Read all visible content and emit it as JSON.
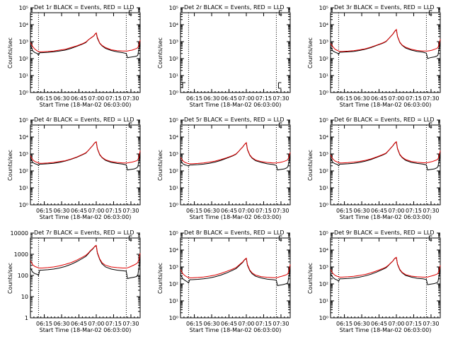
{
  "colors": {
    "events": "#000000",
    "lld": "#e00000",
    "axis": "#000000"
  },
  "shared": {
    "x_tick_labels": [
      "06:15",
      "06:30",
      "06:45",
      "07:00",
      "07:15",
      "07:30"
    ],
    "x_ticks_min": [
      12,
      27,
      42,
      57,
      72,
      87
    ],
    "x_range_min": [
      0,
      95
    ],
    "dotted_lines_min": [
      7,
      83
    ],
    "xlabel": "Start Time (18-Mar-02 06:03:00)"
  },
  "chart_data": [
    {
      "type": "line",
      "title": "Det 1r BLACK = Events, RED = LLD",
      "ylabel": "Counts/sec",
      "ylim_log": [
        0,
        5
      ],
      "y_tick_labels": [
        "10⁰",
        "10¹",
        "10²",
        "10³",
        "10⁴",
        "10⁵"
      ],
      "x_min": [
        0,
        2,
        4,
        6,
        7,
        8,
        10,
        15,
        20,
        25,
        30,
        35,
        40,
        45,
        48,
        50,
        52,
        54,
        55,
        56,
        57,
        58,
        60,
        62,
        65,
        70,
        75,
        80,
        83,
        84,
        86,
        88,
        90,
        92,
        93,
        94,
        95
      ],
      "series": [
        {
          "name": "Events",
          "values": [
            2.8,
            2.45,
            2.35,
            2.3,
            2.2,
            2.35,
            2.35,
            2.37,
            2.4,
            2.45,
            2.5,
            2.6,
            2.72,
            2.85,
            2.95,
            3.1,
            3.2,
            3.3,
            3.35,
            3.45,
            3.5,
            3.2,
            2.9,
            2.75,
            2.6,
            2.48,
            2.4,
            2.35,
            2.3,
            2.05,
            2.08,
            2.1,
            2.12,
            2.15,
            2.2,
            2.6,
            3.0
          ]
        },
        {
          "name": "LLD",
          "values": [
            2.95,
            2.7,
            2.55,
            2.45,
            2.42,
            2.4,
            2.4,
            2.42,
            2.45,
            2.5,
            2.55,
            2.65,
            2.75,
            2.88,
            2.98,
            3.1,
            3.2,
            3.3,
            3.35,
            3.45,
            3.52,
            3.25,
            2.92,
            2.78,
            2.65,
            2.52,
            2.47,
            2.45,
            2.45,
            2.45,
            2.48,
            2.5,
            2.55,
            2.6,
            2.65,
            2.8,
            3.1
          ]
        }
      ]
    },
    {
      "type": "line",
      "title": "Det 2r BLACK = Events, RED = LLD",
      "ylabel": "Counts/sec",
      "ylim_log": [
        0,
        5
      ],
      "y_tick_labels": [
        "10⁰",
        "10¹",
        "10²",
        "10³",
        "10⁴",
        "10⁵"
      ],
      "x_min": [],
      "series": [
        {
          "name": "Events",
          "values": []
        },
        {
          "name": "LLD",
          "values": []
        }
      ]
    },
    {
      "type": "line",
      "title": "Det 3r BLACK = Events, RED = LLD",
      "ylabel": "Counts/sec",
      "ylim_log": [
        0,
        5
      ],
      "y_tick_labels": [
        "10⁰",
        "10¹",
        "10²",
        "10³",
        "10⁴",
        "10⁵"
      ],
      "x_min": [
        0,
        2,
        4,
        6,
        7,
        8,
        10,
        15,
        20,
        25,
        30,
        35,
        40,
        45,
        48,
        50,
        52,
        54,
        55,
        56,
        57,
        58,
        60,
        62,
        65,
        70,
        75,
        80,
        83,
        84,
        86,
        88,
        90,
        92,
        93,
        94,
        95
      ],
      "series": [
        {
          "name": "Events",
          "values": [
            2.7,
            2.45,
            2.38,
            2.32,
            2.25,
            2.38,
            2.38,
            2.4,
            2.42,
            2.48,
            2.55,
            2.65,
            2.78,
            2.9,
            3.0,
            3.15,
            3.3,
            3.45,
            3.55,
            3.65,
            3.7,
            3.3,
            2.95,
            2.78,
            2.62,
            2.5,
            2.42,
            2.38,
            2.32,
            2.0,
            2.05,
            2.08,
            2.1,
            2.15,
            2.2,
            2.6,
            3.05
          ]
        },
        {
          "name": "LLD",
          "values": [
            2.9,
            2.7,
            2.55,
            2.48,
            2.45,
            2.42,
            2.42,
            2.44,
            2.47,
            2.52,
            2.58,
            2.68,
            2.8,
            2.92,
            3.02,
            3.15,
            3.3,
            3.45,
            3.55,
            3.65,
            3.72,
            3.32,
            2.97,
            2.8,
            2.67,
            2.55,
            2.48,
            2.45,
            2.45,
            2.45,
            2.47,
            2.5,
            2.55,
            2.6,
            2.65,
            2.85,
            3.15
          ]
        }
      ]
    },
    {
      "type": "line",
      "title": "Det 4r BLACK = Events, RED = LLD",
      "ylabel": "Counts/sec",
      "ylim_log": [
        0,
        5
      ],
      "y_tick_labels": [
        "10⁰",
        "10¹",
        "10²",
        "10³",
        "10⁴",
        "10⁵"
      ],
      "x_min": [
        0,
        2,
        4,
        6,
        7,
        8,
        10,
        15,
        20,
        25,
        30,
        35,
        40,
        45,
        48,
        50,
        52,
        54,
        55,
        56,
        57,
        58,
        60,
        62,
        65,
        70,
        75,
        80,
        83,
        84,
        86,
        88,
        90,
        92,
        93,
        94,
        95
      ],
      "series": [
        {
          "name": "Events",
          "values": [
            2.75,
            2.5,
            2.42,
            2.38,
            2.32,
            2.4,
            2.4,
            2.42,
            2.45,
            2.5,
            2.58,
            2.68,
            2.8,
            2.95,
            3.05,
            3.2,
            3.35,
            3.5,
            3.6,
            3.68,
            3.7,
            3.3,
            2.95,
            2.78,
            2.62,
            2.5,
            2.44,
            2.4,
            2.35,
            2.05,
            2.08,
            2.1,
            2.12,
            2.18,
            2.25,
            2.6,
            3.1
          ]
        },
        {
          "name": "LLD",
          "values": [
            2.9,
            2.65,
            2.55,
            2.5,
            2.48,
            2.45,
            2.45,
            2.47,
            2.5,
            2.55,
            2.6,
            2.7,
            2.82,
            2.97,
            3.07,
            3.2,
            3.35,
            3.5,
            3.6,
            3.68,
            3.72,
            3.32,
            2.98,
            2.8,
            2.66,
            2.55,
            2.5,
            2.47,
            2.47,
            2.47,
            2.5,
            2.52,
            2.56,
            2.6,
            2.65,
            2.85,
            3.2
          ]
        }
      ]
    },
    {
      "type": "line",
      "title": "Det 5r BLACK = Events, RED = LLD",
      "ylabel": "Counts/sec",
      "ylim_log": [
        0,
        5
      ],
      "y_tick_labels": [
        "10⁰",
        "10¹",
        "10²",
        "10³",
        "10⁴",
        "10⁵"
      ],
      "x_min": [
        0,
        2,
        4,
        6,
        7,
        8,
        10,
        15,
        20,
        25,
        30,
        35,
        40,
        45,
        48,
        50,
        52,
        54,
        55,
        56,
        57,
        58,
        60,
        62,
        65,
        70,
        75,
        80,
        83,
        84,
        86,
        88,
        90,
        92,
        93,
        94,
        95
      ],
      "series": [
        {
          "name": "Events",
          "values": [
            2.65,
            2.42,
            2.35,
            2.32,
            2.28,
            2.35,
            2.35,
            2.37,
            2.4,
            2.45,
            2.52,
            2.62,
            2.75,
            2.88,
            2.98,
            3.12,
            3.28,
            3.42,
            3.52,
            3.6,
            3.65,
            3.25,
            2.92,
            2.75,
            2.6,
            2.5,
            2.42,
            2.38,
            2.32,
            2.05,
            2.08,
            2.1,
            2.12,
            2.18,
            2.25,
            2.55,
            2.95
          ]
        },
        {
          "name": "LLD",
          "values": [
            2.8,
            2.6,
            2.5,
            2.45,
            2.43,
            2.42,
            2.42,
            2.44,
            2.47,
            2.52,
            2.58,
            2.67,
            2.78,
            2.9,
            3.0,
            3.13,
            3.28,
            3.42,
            3.52,
            3.6,
            3.67,
            3.28,
            2.95,
            2.78,
            2.64,
            2.55,
            2.5,
            2.47,
            2.47,
            2.48,
            2.5,
            2.53,
            2.57,
            2.62,
            2.68,
            2.85,
            3.1
          ]
        }
      ]
    },
    {
      "type": "line",
      "title": "Det 6r BLACK = Events, RED = LLD",
      "ylabel": "Counts/sec",
      "ylim_log": [
        0,
        5
      ],
      "y_tick_labels": [
        "10⁰",
        "10¹",
        "10²",
        "10³",
        "10⁴",
        "10⁵"
      ],
      "x_min": [
        0,
        2,
        4,
        6,
        7,
        8,
        10,
        15,
        20,
        25,
        30,
        35,
        40,
        45,
        48,
        50,
        52,
        54,
        55,
        56,
        57,
        58,
        60,
        62,
        65,
        70,
        75,
        80,
        83,
        84,
        86,
        88,
        90,
        92,
        93,
        94,
        95
      ],
      "series": [
        {
          "name": "Events",
          "values": [
            2.75,
            2.5,
            2.42,
            2.38,
            2.3,
            2.4,
            2.4,
            2.42,
            2.45,
            2.5,
            2.57,
            2.67,
            2.8,
            2.93,
            3.03,
            3.18,
            3.33,
            3.48,
            3.58,
            3.66,
            3.7,
            3.3,
            2.95,
            2.78,
            2.62,
            2.5,
            2.44,
            2.4,
            2.35,
            2.05,
            2.08,
            2.1,
            2.12,
            2.18,
            2.25,
            2.6,
            3.05
          ]
        },
        {
          "name": "LLD",
          "values": [
            2.95,
            2.7,
            2.58,
            2.52,
            2.5,
            2.47,
            2.47,
            2.49,
            2.52,
            2.56,
            2.62,
            2.71,
            2.83,
            2.96,
            3.05,
            3.19,
            3.34,
            3.49,
            3.59,
            3.67,
            3.72,
            3.33,
            2.98,
            2.81,
            2.67,
            2.56,
            2.51,
            2.48,
            2.48,
            2.49,
            2.52,
            2.55,
            2.6,
            2.65,
            2.7,
            2.9,
            3.2
          ]
        }
      ]
    },
    {
      "type": "line",
      "title": "Det 7r BLACK = Events, RED = LLD",
      "ylabel": "Counts/sec",
      "ylim_log": [
        0,
        4
      ],
      "y_tick_labels": [
        "1",
        "10",
        "100",
        "1000",
        "10000"
      ],
      "x_min": [
        0,
        2,
        4,
        6,
        7,
        8,
        10,
        15,
        20,
        25,
        30,
        35,
        40,
        45,
        48,
        50,
        52,
        54,
        55,
        56,
        57,
        58,
        60,
        62,
        65,
        70,
        75,
        80,
        83,
        84,
        86,
        88,
        90,
        92,
        93,
        94,
        95
      ],
      "series": [
        {
          "name": "Events",
          "values": [
            2.35,
            2.15,
            2.08,
            2.05,
            2.0,
            2.25,
            2.25,
            2.27,
            2.3,
            2.35,
            2.42,
            2.52,
            2.65,
            2.8,
            2.9,
            3.02,
            3.15,
            3.25,
            3.32,
            3.38,
            3.4,
            3.05,
            2.75,
            2.55,
            2.4,
            2.3,
            2.25,
            2.22,
            2.2,
            1.85,
            1.88,
            1.9,
            1.92,
            1.95,
            2.0,
            2.4,
            2.95
          ]
        },
        {
          "name": "LLD",
          "values": [
            2.7,
            2.5,
            2.42,
            2.38,
            2.36,
            2.35,
            2.35,
            2.37,
            2.4,
            2.45,
            2.52,
            2.6,
            2.72,
            2.86,
            2.95,
            3.05,
            3.17,
            3.27,
            3.33,
            3.39,
            3.42,
            3.08,
            2.78,
            2.6,
            2.48,
            2.4,
            2.37,
            2.35,
            2.35,
            2.36,
            2.4,
            2.45,
            2.5,
            2.56,
            2.62,
            2.75,
            3.05
          ]
        }
      ]
    },
    {
      "type": "line",
      "title": "Det 8r BLACK = Events, RED = LLD",
      "ylabel": "Counts/sec",
      "ylim_log": [
        0,
        5
      ],
      "y_tick_labels": [
        "10⁰",
        "10¹",
        "10²",
        "10³",
        "10⁴",
        "10⁵"
      ],
      "x_min": [
        0,
        2,
        4,
        6,
        7,
        8,
        10,
        15,
        20,
        25,
        30,
        35,
        40,
        45,
        48,
        50,
        52,
        54,
        55,
        56,
        57,
        58,
        60,
        62,
        65,
        70,
        75,
        80,
        83,
        84,
        86,
        88,
        90,
        92,
        93,
        94,
        95
      ],
      "series": [
        {
          "name": "Events",
          "values": [
            2.55,
            2.3,
            2.2,
            2.12,
            2.05,
            2.25,
            2.25,
            2.27,
            2.3,
            2.35,
            2.42,
            2.52,
            2.65,
            2.8,
            2.9,
            3.02,
            3.15,
            3.28,
            3.38,
            3.45,
            3.5,
            3.1,
            2.78,
            2.6,
            2.45,
            2.35,
            2.28,
            2.25,
            2.22,
            1.9,
            1.93,
            1.95,
            1.98,
            2.02,
            2.08,
            2.5,
            3.05
          ]
        },
        {
          "name": "LLD",
          "values": [
            2.85,
            2.6,
            2.48,
            2.4,
            2.38,
            2.36,
            2.36,
            2.38,
            2.41,
            2.46,
            2.52,
            2.62,
            2.74,
            2.87,
            2.96,
            3.07,
            3.19,
            3.31,
            3.4,
            3.47,
            3.52,
            3.14,
            2.82,
            2.65,
            2.52,
            2.43,
            2.39,
            2.37,
            2.37,
            2.38,
            2.42,
            2.46,
            2.5,
            2.55,
            2.6,
            2.8,
            3.15
          ]
        }
      ]
    },
    {
      "type": "line",
      "title": "Det 9r BLACK = Events, RED = LLD",
      "ylabel": "Counts/sec",
      "ylim_log": [
        0,
        5
      ],
      "y_tick_labels": [
        "10⁰",
        "10¹",
        "10²",
        "10³",
        "10⁴",
        "10⁵"
      ],
      "x_min": [
        0,
        2,
        4,
        6,
        7,
        8,
        10,
        15,
        20,
        25,
        30,
        35,
        40,
        45,
        48,
        50,
        52,
        54,
        55,
        56,
        57,
        58,
        60,
        62,
        65,
        70,
        75,
        80,
        83,
        84,
        86,
        88,
        90,
        92,
        93,
        94,
        95
      ],
      "series": [
        {
          "name": "Events",
          "values": [
            2.6,
            2.38,
            2.28,
            2.22,
            2.15,
            2.3,
            2.3,
            2.32,
            2.35,
            2.4,
            2.47,
            2.57,
            2.7,
            2.85,
            2.95,
            3.08,
            3.22,
            3.35,
            3.45,
            3.52,
            3.55,
            3.15,
            2.82,
            2.65,
            2.5,
            2.4,
            2.33,
            2.3,
            2.26,
            1.95,
            1.98,
            2.0,
            2.02,
            2.07,
            2.12,
            2.5,
            3.0
          ]
        },
        {
          "name": "LLD",
          "values": [
            2.85,
            2.62,
            2.5,
            2.44,
            2.42,
            2.4,
            2.4,
            2.42,
            2.45,
            2.5,
            2.56,
            2.65,
            2.77,
            2.9,
            2.99,
            3.1,
            3.23,
            3.36,
            3.46,
            3.53,
            3.57,
            3.18,
            2.86,
            2.68,
            2.55,
            2.46,
            2.42,
            2.4,
            2.4,
            2.41,
            2.44,
            2.48,
            2.52,
            2.57,
            2.62,
            2.8,
            3.1
          ]
        }
      ]
    }
  ]
}
